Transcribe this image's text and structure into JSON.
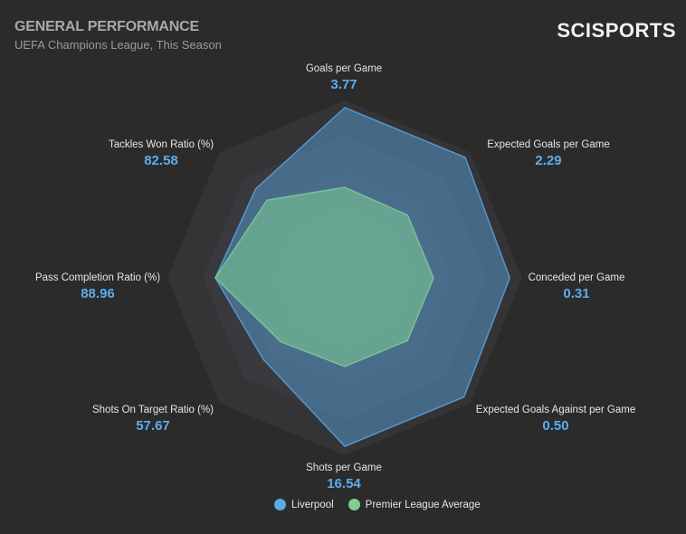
{
  "header": {
    "title": "GENERAL PERFORMANCE",
    "subtitle": "UEFA Champions League, This Season",
    "logo": "SCISPORTS"
  },
  "chart_data": {
    "type": "radar",
    "title": "GENERAL PERFORMANCE",
    "subtitle": "UEFA Champions League, This Season",
    "axes": [
      {
        "label": "Goals per Game",
        "value": "3.77"
      },
      {
        "label": "Expected Goals per Game",
        "value": "2.29"
      },
      {
        "label": "Conceded per Game",
        "value": "0.31"
      },
      {
        "label": "Expected Goals Against per Game",
        "value": "0.50"
      },
      {
        "label": "Shots per Game",
        "value": "16.54"
      },
      {
        "label": "Shots On Target Ratio (%)",
        "value": "57.67"
      },
      {
        "label": "Pass Completion Ratio (%)",
        "value": "88.96"
      },
      {
        "label": "Tackles Won Ratio (%)",
        "value": "82.58"
      }
    ],
    "scale": [
      0,
      1
    ],
    "rings": 5,
    "series": [
      {
        "name": "Liverpool",
        "color": "#5aa9e6",
        "values": [
          0.96,
          0.96,
          0.93,
          0.95,
          0.95,
          0.65,
          0.73,
          0.71
        ]
      },
      {
        "name": "Premier League Average",
        "color": "#7fcf95",
        "values": [
          0.51,
          0.5,
          0.5,
          0.5,
          0.5,
          0.51,
          0.73,
          0.62
        ]
      }
    ],
    "legend_position": "bottom"
  }
}
